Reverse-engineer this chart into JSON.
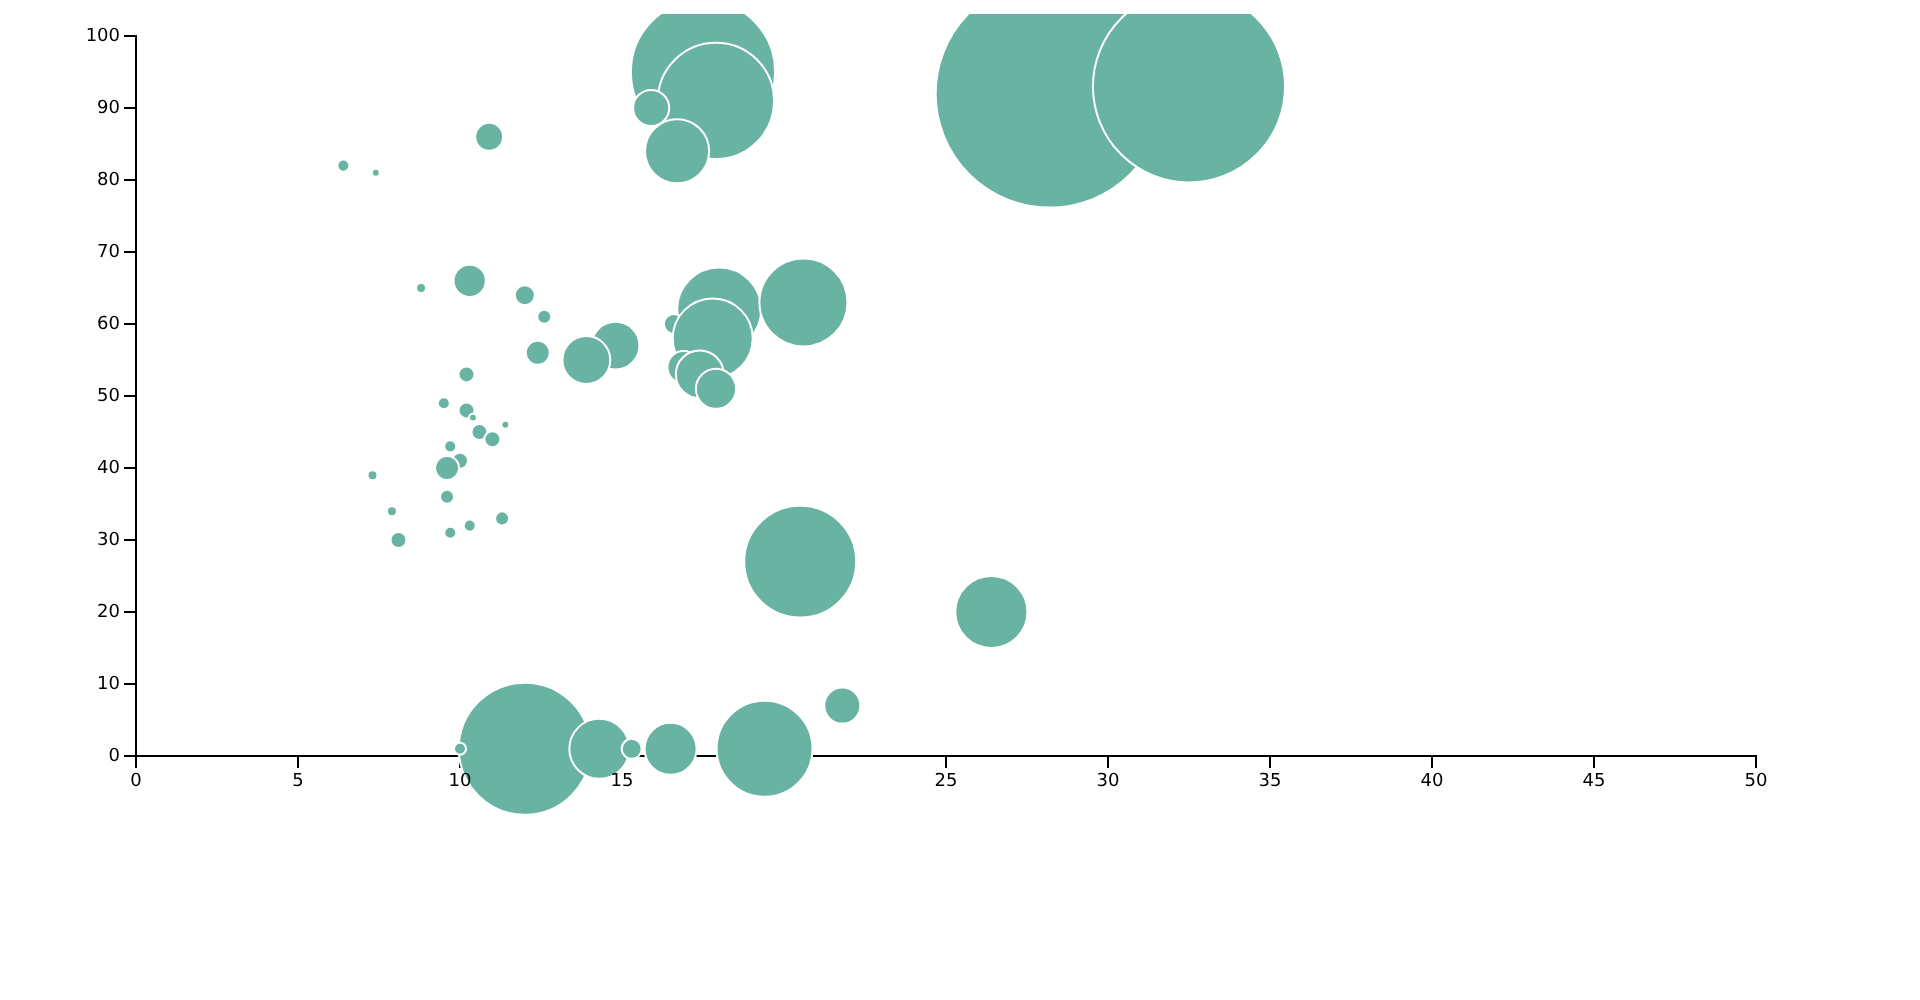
{
  "chart_data": {
    "type": "bubble",
    "x": [
      28.2,
      32.5,
      17.5,
      17.9,
      15.9,
      16.7,
      18.0,
      20.6,
      16.6,
      17.8,
      16.9,
      17.4,
      17.9,
      14.8,
      13.9,
      10.9,
      6.4,
      7.4,
      8.8,
      10.3,
      12.0,
      12.6,
      12.4,
      10.2,
      9.5,
      10.2,
      10.4,
      11.4,
      10.6,
      11.0,
      9.7,
      10.0,
      9.6,
      7.3,
      9.6,
      7.9,
      11.3,
      10.3,
      9.7,
      8.1,
      12.0,
      10.0,
      14.3,
      15.3,
      16.5,
      19.4,
      20.5,
      26.4,
      21.8
    ],
    "values": [
      92,
      93,
      95,
      91,
      90,
      84,
      62,
      63,
      60,
      58,
      54,
      53,
      51,
      57,
      55,
      86,
      82,
      81,
      65,
      66,
      64,
      61,
      56,
      53,
      49,
      48,
      47,
      46,
      45,
      44,
      43,
      41,
      40,
      39,
      36,
      34,
      33,
      32,
      31,
      30,
      1,
      1,
      1,
      1,
      1,
      1,
      27,
      20,
      7
    ],
    "sizes": [
      1,
      0.71,
      0.4,
      0.26,
      0.025,
      0.079,
      0.136,
      0.149,
      0.0077,
      0.123,
      0.02,
      0.044,
      0.031,
      0.044,
      0.044,
      0.015,
      0.0028,
      0.0012,
      0.0019,
      0.02,
      0.0077,
      0.0038,
      0.011,
      0.0049,
      0.0028,
      0.0049,
      0.0012,
      0.0012,
      0.0049,
      0.0049,
      0.0028,
      0.0049,
      0.011,
      0.0019,
      0.0038,
      0.0019,
      0.0038,
      0.0028,
      0.0028,
      0.0049,
      0.335,
      0.0028,
      0.069,
      0.0077,
      0.052,
      0.177,
      0.241,
      0.1,
      0.025
    ],
    "color": "#69b3a2",
    "xlim": [
      0,
      50
    ],
    "xticks": [
      0,
      5,
      10,
      15,
      25,
      30,
      35,
      40,
      45,
      50
    ],
    "ylim": [
      0,
      100
    ],
    "yticks": [
      0,
      10,
      20,
      30,
      40,
      50,
      60,
      70,
      80,
      90,
      100
    ],
    "grid": false,
    "legend": false
  }
}
